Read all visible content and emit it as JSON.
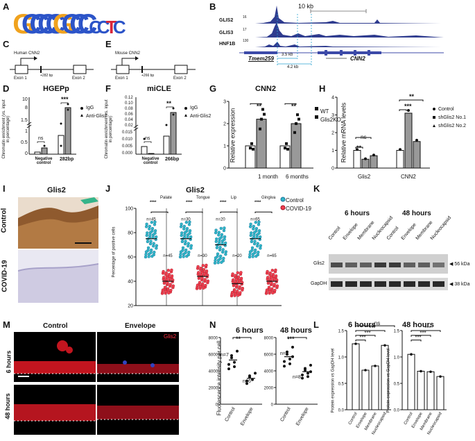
{
  "panels": {
    "A": "A",
    "B": "B",
    "C": "C",
    "D": "D",
    "E": "E",
    "F": "F",
    "G": "G",
    "H": "H",
    "I": "I",
    "J": "J",
    "K": "K",
    "L": "L",
    "M": "M",
    "N": "N"
  },
  "motif": {
    "letters": "GCCCCGCCCCCTC",
    "colors": {
      "G": "#f0a21e",
      "C": "#2c54c8",
      "T": "#d8263a",
      "A": "#2aa84a"
    }
  },
  "tracks": {
    "scale": "10 kb",
    "rows": [
      {
        "name": "GLIS2",
        "max": "16"
      },
      {
        "name": "GLIS3",
        "max": "17"
      },
      {
        "name": "HNF1B",
        "max": "130"
      }
    ],
    "gene_left": "Tmem259",
    "gene_right": "CNN2",
    "dist1": "3.5 kb",
    "dist2": "4.2 kb"
  },
  "human": {
    "title": "Human CNN2",
    "site": "+282 bp",
    "exon1": "Exon 1",
    "exon2": "Exon 2"
  },
  "mouse": {
    "title": "Mouse CNN2",
    "site": "+266 bp",
    "exon1": "Exon 1",
    "exon2": "Exon 2"
  },
  "chipD": {
    "title": "HGEPp",
    "ylabel": "Chromatin enrichment (vs. input in percentage)",
    "ticks": [
      "0",
      "0.5",
      "1",
      "1.5",
      "2",
      "8",
      "10"
    ],
    "cats": [
      "Negative control",
      "282bp"
    ],
    "sig": [
      "ns",
      "***"
    ],
    "legend": [
      "IgG",
      "Anti-Glis2"
    ]
  },
  "chipF": {
    "title": "miCLE",
    "ylabel": "Chromatin enrichment (vs. input in percentage)",
    "ticks": [
      "0.000",
      "0.005",
      "0.010",
      "0.015",
      "0.02",
      "0.04",
      "0.06",
      "0.08",
      "0.10",
      "0.12"
    ],
    "cats": [
      "Negative control",
      "266bp"
    ],
    "sig": [
      "ns",
      "**"
    ],
    "legend": [
      "IgG",
      "Anti-Glis2"
    ]
  },
  "chart_data": [
    {
      "type": "bar",
      "title": "CNN2",
      "ylabel": "Relative expression",
      "categories": [
        "1 month",
        "6 months"
      ],
      "series": [
        {
          "name": "WT",
          "values": [
            1.0,
            1.0
          ]
        },
        {
          "name": "Glis2KO",
          "values": [
            2.2,
            2.0
          ]
        }
      ],
      "ylim": [
        0,
        3
      ],
      "yticks": [
        "0",
        "1",
        "2",
        "3"
      ],
      "sig": [
        "**",
        "**"
      ]
    },
    {
      "type": "bar",
      "ylabel": "Relative mRNA levels",
      "categories": [
        "Glis2",
        "CNN2"
      ],
      "series": [
        {
          "name": "Control",
          "values": [
            1.0,
            1.0
          ]
        },
        {
          "name": "shGlis2 No.1",
          "values": [
            0.5,
            3.1
          ]
        },
        {
          "name": "shGlis2 No.2",
          "values": [
            0.7,
            1.5
          ]
        }
      ],
      "ylim": [
        0,
        4
      ],
      "yticks": [
        "0",
        "1",
        "2",
        "3",
        "4"
      ],
      "sig": [
        "**",
        "ns",
        "***",
        "**"
      ]
    },
    {
      "type": "scatter",
      "title": "Glis2",
      "ylabel": "Percentage of positive cells",
      "categories": [
        "Palate",
        "Tongue",
        "Lip",
        "Gingiva"
      ],
      "series": [
        {
          "name": "Control",
          "values": [
            75,
            75,
            70,
            75
          ],
          "n": [
            "n=45",
            "n=30",
            "n=20",
            "n=65"
          ]
        },
        {
          "name": "COVID-19",
          "values": [
            40,
            44,
            38,
            40
          ],
          "n": [
            "n=45",
            "n=30",
            "n=20",
            "n=65"
          ]
        }
      ],
      "ylim": [
        20,
        100
      ],
      "yticks": [
        "20",
        "40",
        "60",
        "80",
        "100"
      ],
      "sig": [
        "****",
        "****",
        "****",
        "****"
      ]
    },
    {
      "type": "scatter",
      "title": "6 hours",
      "ylabel": "Fluorescence intensity per cell",
      "categories": [
        "Control",
        "Envelope"
      ],
      "values": [
        5300,
        3100
      ],
      "n": [
        "n=7",
        "n=6"
      ],
      "ylim": [
        0,
        8000
      ],
      "yticks": [
        "0",
        "2000",
        "4000",
        "6000",
        "8000"
      ],
      "sig": "**"
    },
    {
      "type": "scatter",
      "title": "48 hours",
      "categories": [
        "Control",
        "Envelope"
      ],
      "values": [
        5700,
        3900
      ],
      "n": [
        "n=8",
        "n=8"
      ],
      "ylim": [
        0,
        8000
      ],
      "yticks": [
        "0",
        "2000",
        "4000",
        "6000",
        "8000"
      ],
      "sig": "***"
    },
    {
      "type": "bar",
      "title": "6 hours",
      "ylabel": "Protein expression vs GapDH level",
      "categories": [
        "Control",
        "Envelope",
        "Membrane",
        "Nucleocapsid"
      ],
      "values": [
        1.25,
        0.75,
        0.83,
        1.22
      ],
      "ylim": [
        0,
        1.5
      ],
      "yticks": [
        "0.0",
        "0.5",
        "1.0",
        "1.5"
      ],
      "sig": [
        "***",
        "***",
        "***",
        "ns"
      ]
    },
    {
      "type": "bar",
      "title": "48 hours",
      "ylabel": "Protein expression vs GapDH level",
      "categories": [
        "Control",
        "Envelope",
        "Membrane",
        "Nucleocapsid"
      ],
      "values": [
        1.05,
        0.73,
        0.72,
        0.63
      ],
      "ylim": [
        0,
        1.5
      ],
      "yticks": [
        "0.0",
        "0.5",
        "1.0",
        "1.5"
      ],
      "sig": [
        "***",
        "***",
        "***"
      ]
    }
  ],
  "histo": {
    "title": "Glis2",
    "rows": [
      "Control",
      "COVID-19"
    ]
  },
  "wb": {
    "times": [
      "6 hours",
      "48 hours"
    ],
    "lanes": [
      "Control",
      "Envelope",
      "Membrane",
      "Nucleocapsid",
      "Control",
      "Envelope",
      "Membrane",
      "Nucleocapsid"
    ],
    "rows": [
      "Glis2",
      "GapDH"
    ],
    "sizes": [
      "56 kDa",
      "38 kDa"
    ]
  },
  "fluor": {
    "cols": [
      "Control",
      "Envelope"
    ],
    "rows": [
      "6 hours",
      "48 hours"
    ],
    "stain": "Glis2"
  }
}
